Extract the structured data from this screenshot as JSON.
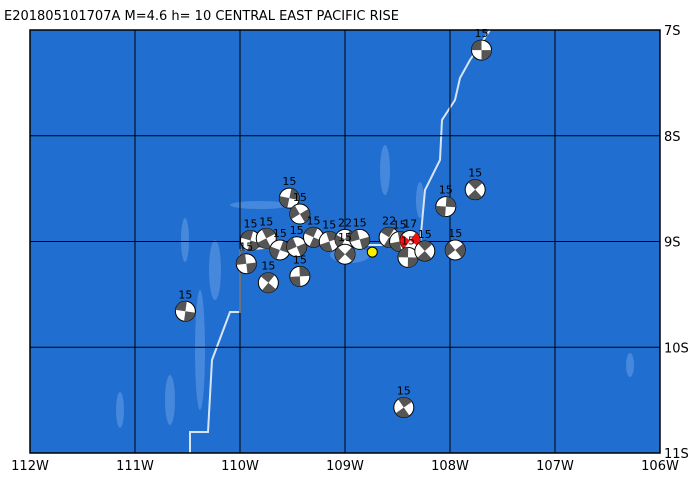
{
  "map": {
    "title": "E201805101707A M=4.6 h= 10 CENTRAL EAST PACIFIC RISE",
    "xlim": [
      -112,
      -106
    ],
    "ylim": [
      -11,
      -7
    ],
    "xticks": [
      {
        "value": -112,
        "label": "112W"
      },
      {
        "value": -111,
        "label": "111W"
      },
      {
        "value": -110,
        "label": "110W"
      },
      {
        "value": -109,
        "label": "109W"
      },
      {
        "value": -108,
        "label": "108W"
      },
      {
        "value": -107,
        "label": "107W"
      },
      {
        "value": -106,
        "label": "106W"
      }
    ],
    "yticks": [
      {
        "value": -7,
        "label": "7S"
      },
      {
        "value": -8,
        "label": "8S"
      },
      {
        "value": -9,
        "label": "9S"
      },
      {
        "value": -10,
        "label": "10S"
      },
      {
        "value": -11,
        "label": "11S"
      }
    ],
    "ocean_color": "#1f6ed0",
    "events": [
      {
        "lon": -107.7,
        "lat": -7.19,
        "depth": 15
      },
      {
        "lon": -107.76,
        "lat": -8.51,
        "depth": 15
      },
      {
        "lon": -108.04,
        "lat": -8.67,
        "depth": 15
      },
      {
        "lon": -107.95,
        "lat": -9.08,
        "depth": 15
      },
      {
        "lon": -110.52,
        "lat": -9.66,
        "depth": 15
      },
      {
        "lon": -108.44,
        "lat": -10.57,
        "depth": 15
      },
      {
        "lon": -109.53,
        "lat": -8.59,
        "depth": 15
      },
      {
        "lon": -109.43,
        "lat": -8.74,
        "depth": 15
      },
      {
        "lon": -109.9,
        "lat": -8.99,
        "depth": 15
      },
      {
        "lon": -109.75,
        "lat": -8.97,
        "depth": 15
      },
      {
        "lon": -109.62,
        "lat": -9.08,
        "depth": 15
      },
      {
        "lon": -109.46,
        "lat": -9.05,
        "depth": 15
      },
      {
        "lon": -109.3,
        "lat": -8.96,
        "depth": 15
      },
      {
        "lon": -109.15,
        "lat": -9.0,
        "depth": 15
      },
      {
        "lon": -109.0,
        "lat": -8.98,
        "depth": 22
      },
      {
        "lon": -108.86,
        "lat": -8.98,
        "depth": 15
      },
      {
        "lon": -108.58,
        "lat": -8.96,
        "depth": 22
      },
      {
        "lon": -108.48,
        "lat": -9.0,
        "depth": 15
      },
      {
        "lon": -108.38,
        "lat": -8.99,
        "depth": 17
      },
      {
        "lon": -109.94,
        "lat": -9.21,
        "depth": 15
      },
      {
        "lon": -109.73,
        "lat": -9.39,
        "depth": 15
      },
      {
        "lon": -109.43,
        "lat": -9.33,
        "depth": 15
      },
      {
        "lon": -109.0,
        "lat": -9.12,
        "depth": 15
      },
      {
        "lon": -108.4,
        "lat": -9.15,
        "depth": 15
      },
      {
        "lon": -108.24,
        "lat": -9.09,
        "depth": 15
      }
    ],
    "main_event": 18,
    "main_color": "#ee1111",
    "epicenter": {
      "lon": -108.74,
      "lat": -9.1,
      "color": "#ffee00"
    }
  }
}
